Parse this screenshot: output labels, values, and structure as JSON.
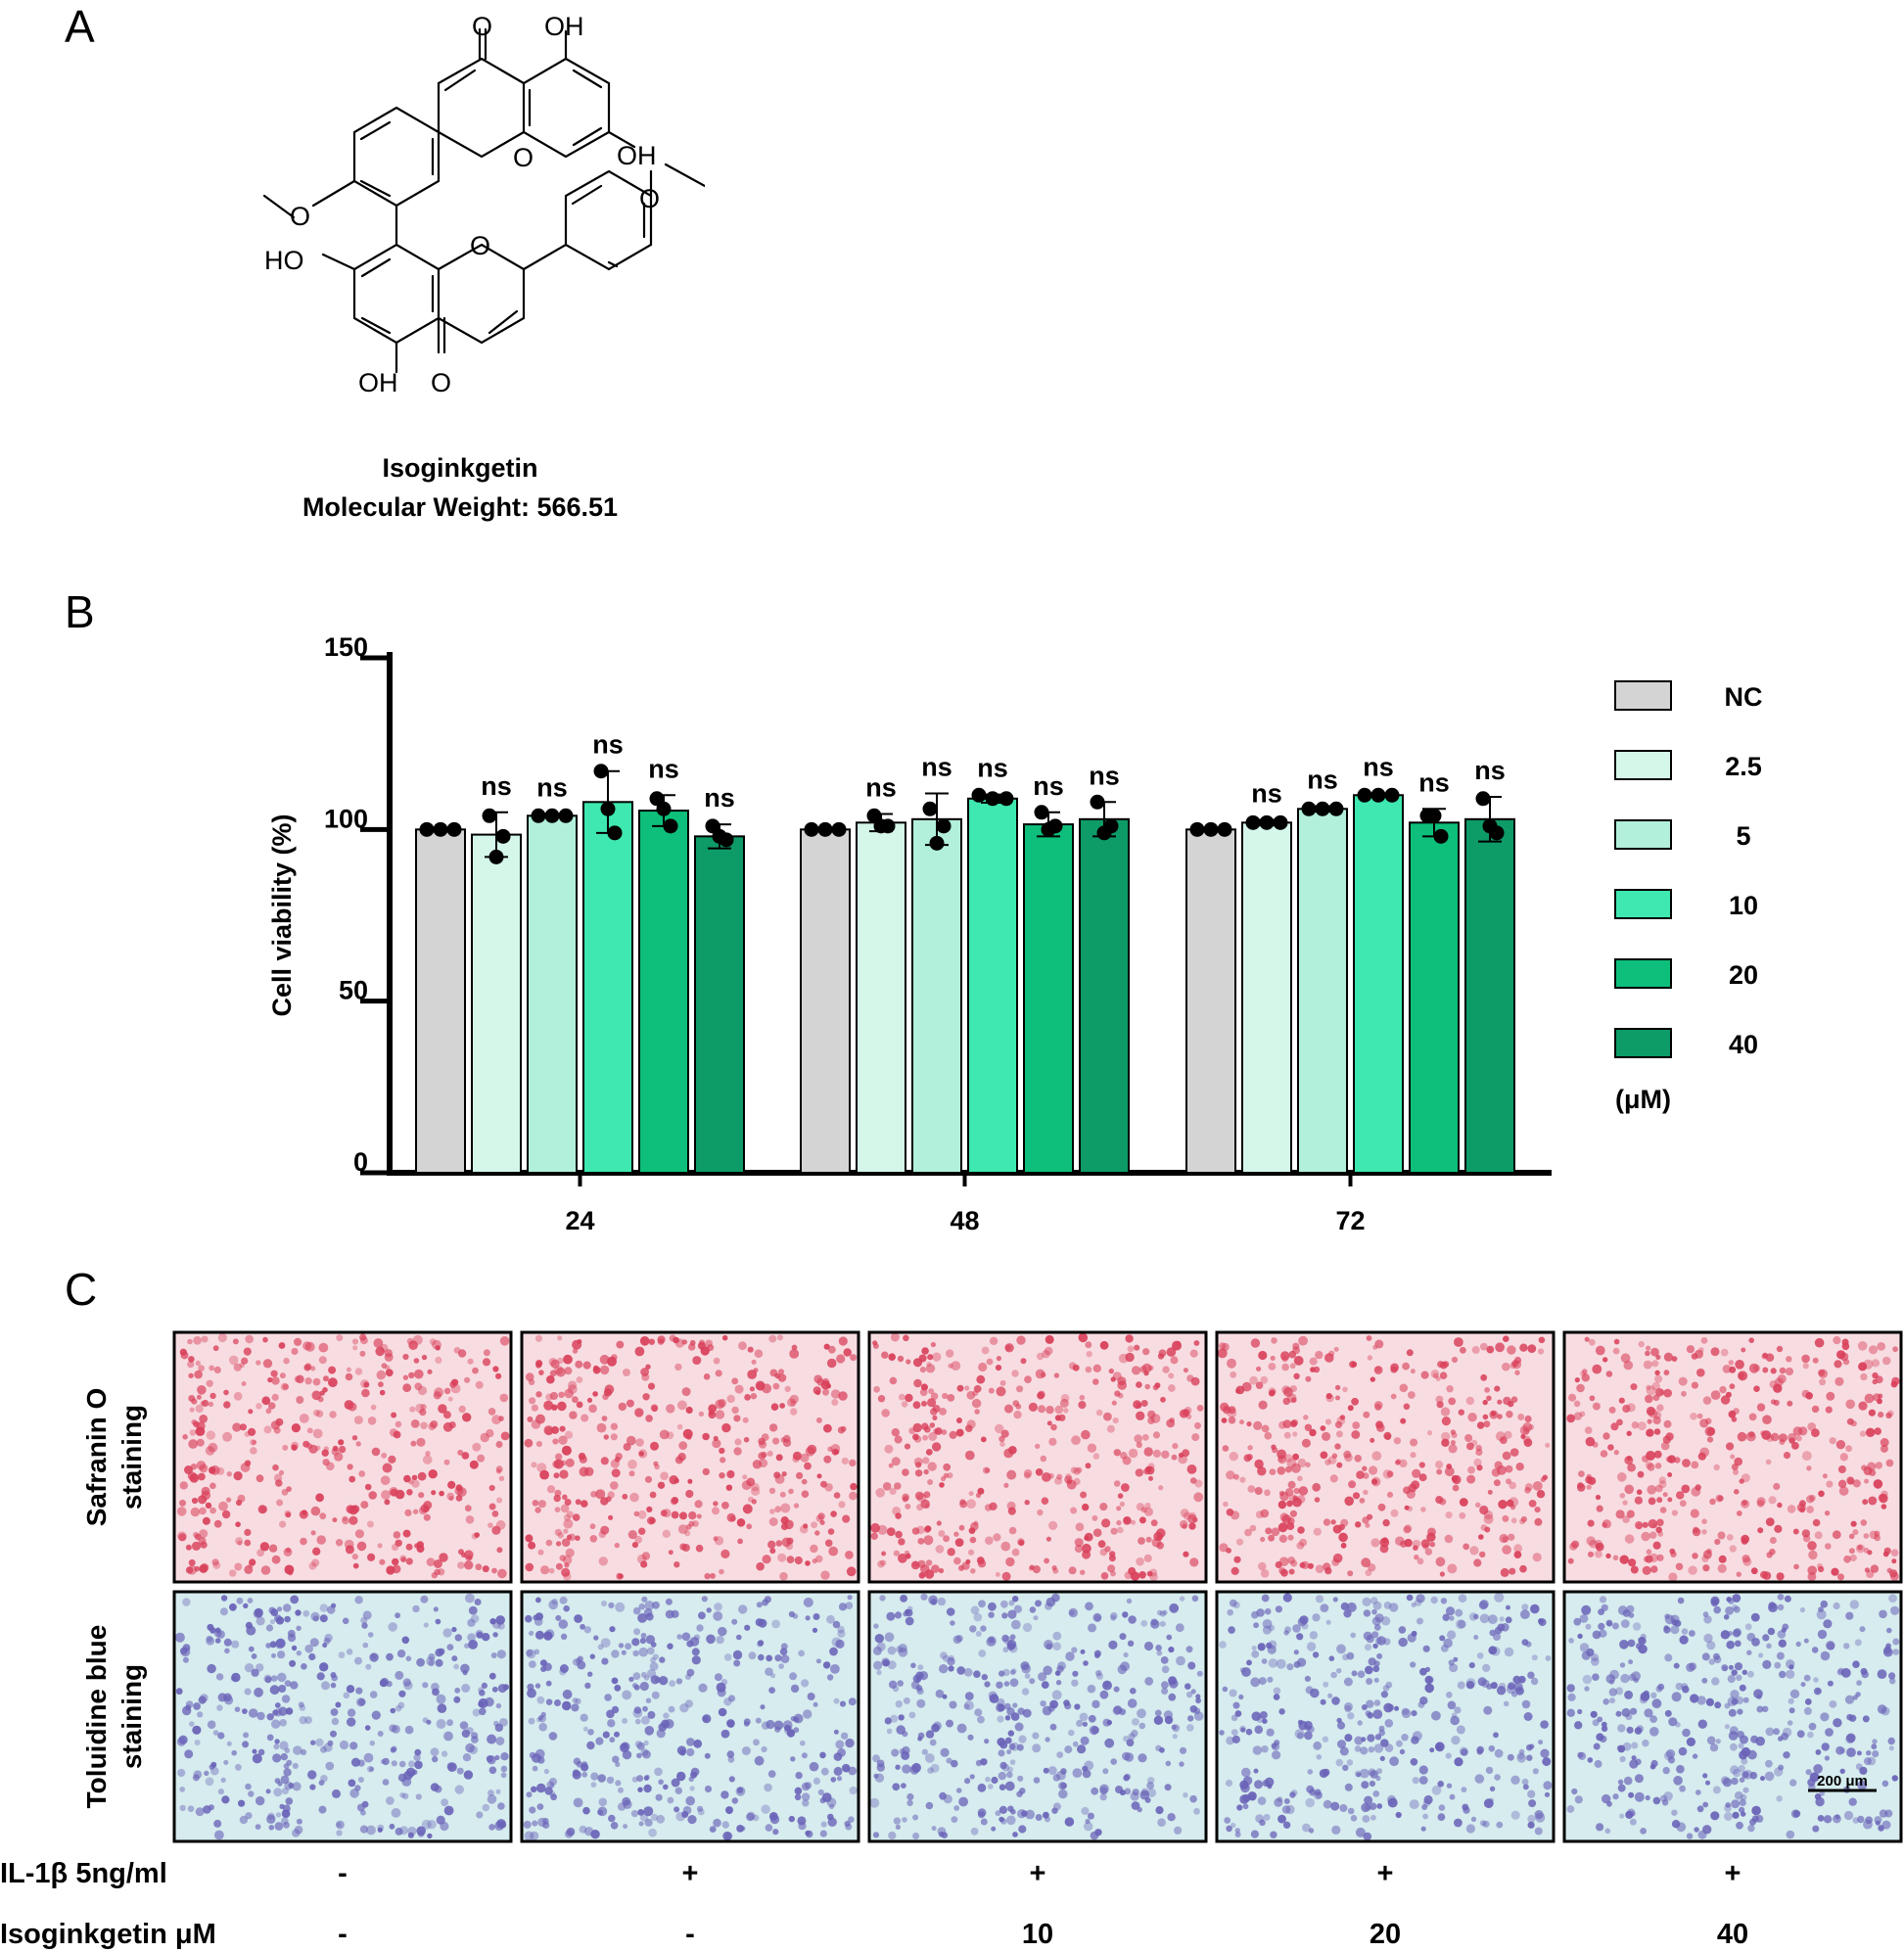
{
  "panels": {
    "a": "A",
    "b": "B",
    "c": "C"
  },
  "compound": {
    "name": "Isoginkgetin",
    "mw_label": "Molecular Weight: 566.51",
    "atoms": [
      "O",
      "OH",
      "OH",
      "O",
      "O",
      "O",
      "HO",
      "O",
      "OH",
      "O"
    ]
  },
  "chart_data": {
    "type": "bar",
    "categories": [
      "24",
      "48",
      "72"
    ],
    "xlabel": "",
    "ylabel": "Cell viability (%)",
    "ylim": [
      0,
      150
    ],
    "yticks": [
      "0",
      "50",
      "100",
      "150"
    ],
    "legend_position": "right",
    "legend_unit": "(μM)",
    "series": [
      {
        "name": "NC",
        "color": "#d4d4d4",
        "values": [
          100,
          100,
          100
        ],
        "sd": [
          0,
          0,
          0
        ],
        "points": [
          [
            100,
            100,
            100
          ],
          [
            100,
            100,
            100
          ],
          [
            100,
            100,
            100
          ]
        ],
        "sig": [
          "",
          "",
          ""
        ]
      },
      {
        "name": "2.5",
        "color": "#d5f7ea",
        "values": [
          98.5,
          102,
          102
        ],
        "sd": [
          6.5,
          2.5,
          0.8
        ],
        "points": [
          [
            104,
            92,
            98
          ],
          [
            104,
            101,
            101
          ],
          [
            102,
            102,
            102
          ]
        ],
        "sig": [
          "ns",
          "ns",
          "ns"
        ]
      },
      {
        "name": "5",
        "color": "#b2f0dc",
        "values": [
          104,
          103,
          106
        ],
        "sd": [
          0.5,
          7.5,
          0.8
        ],
        "points": [
          [
            104,
            104,
            104
          ],
          [
            106,
            96,
            101
          ],
          [
            106,
            106,
            106
          ]
        ],
        "sig": [
          "ns",
          "ns",
          "ns"
        ]
      },
      {
        "name": "10",
        "color": "#3ee8b0",
        "values": [
          108,
          109,
          110
        ],
        "sd": [
          9,
          1.2,
          0.5
        ],
        "points": [
          [
            117,
            106,
            99
          ],
          [
            110,
            109,
            109
          ],
          [
            110,
            110,
            110
          ]
        ],
        "sig": [
          "ns",
          "ns",
          "ns"
        ]
      },
      {
        "name": "20",
        "color": "#0dbf7a",
        "values": [
          105.5,
          101.5,
          102
        ],
        "sd": [
          4.5,
          3.5,
          4
        ],
        "points": [
          [
            109,
            106,
            101
          ],
          [
            105,
            100,
            101
          ],
          [
            104,
            104,
            98
          ]
        ],
        "sig": [
          "ns",
          "ns",
          "ns"
        ]
      },
      {
        "name": "40",
        "color": "#0d9b68",
        "values": [
          98,
          103,
          103
        ],
        "sd": [
          3.5,
          5,
          6.5
        ],
        "points": [
          [
            101,
            98,
            97
          ],
          [
            108,
            99,
            101
          ],
          [
            109,
            101,
            99
          ]
        ],
        "sig": [
          "ns",
          "ns",
          "ns"
        ]
      }
    ]
  },
  "staining": {
    "rows": [
      {
        "label_line1": "Safranin O",
        "label_line2": "staining",
        "color_bg": "#f7dde2",
        "color_cell": "#d9405a"
      },
      {
        "label_line1": "Toluidine blue",
        "label_line2": "staining",
        "color_bg": "#d6ecee",
        "color_cell": "#6a63b8"
      }
    ],
    "scale_bar": "200 μm",
    "conditions": [
      {
        "label": "IL-1β 5ng/ml",
        "values": [
          "-",
          "+",
          "+",
          "+",
          "+"
        ]
      },
      {
        "label": "Isoginkgetin μM",
        "values": [
          "-",
          "-",
          "10",
          "20",
          "40"
        ]
      }
    ]
  }
}
